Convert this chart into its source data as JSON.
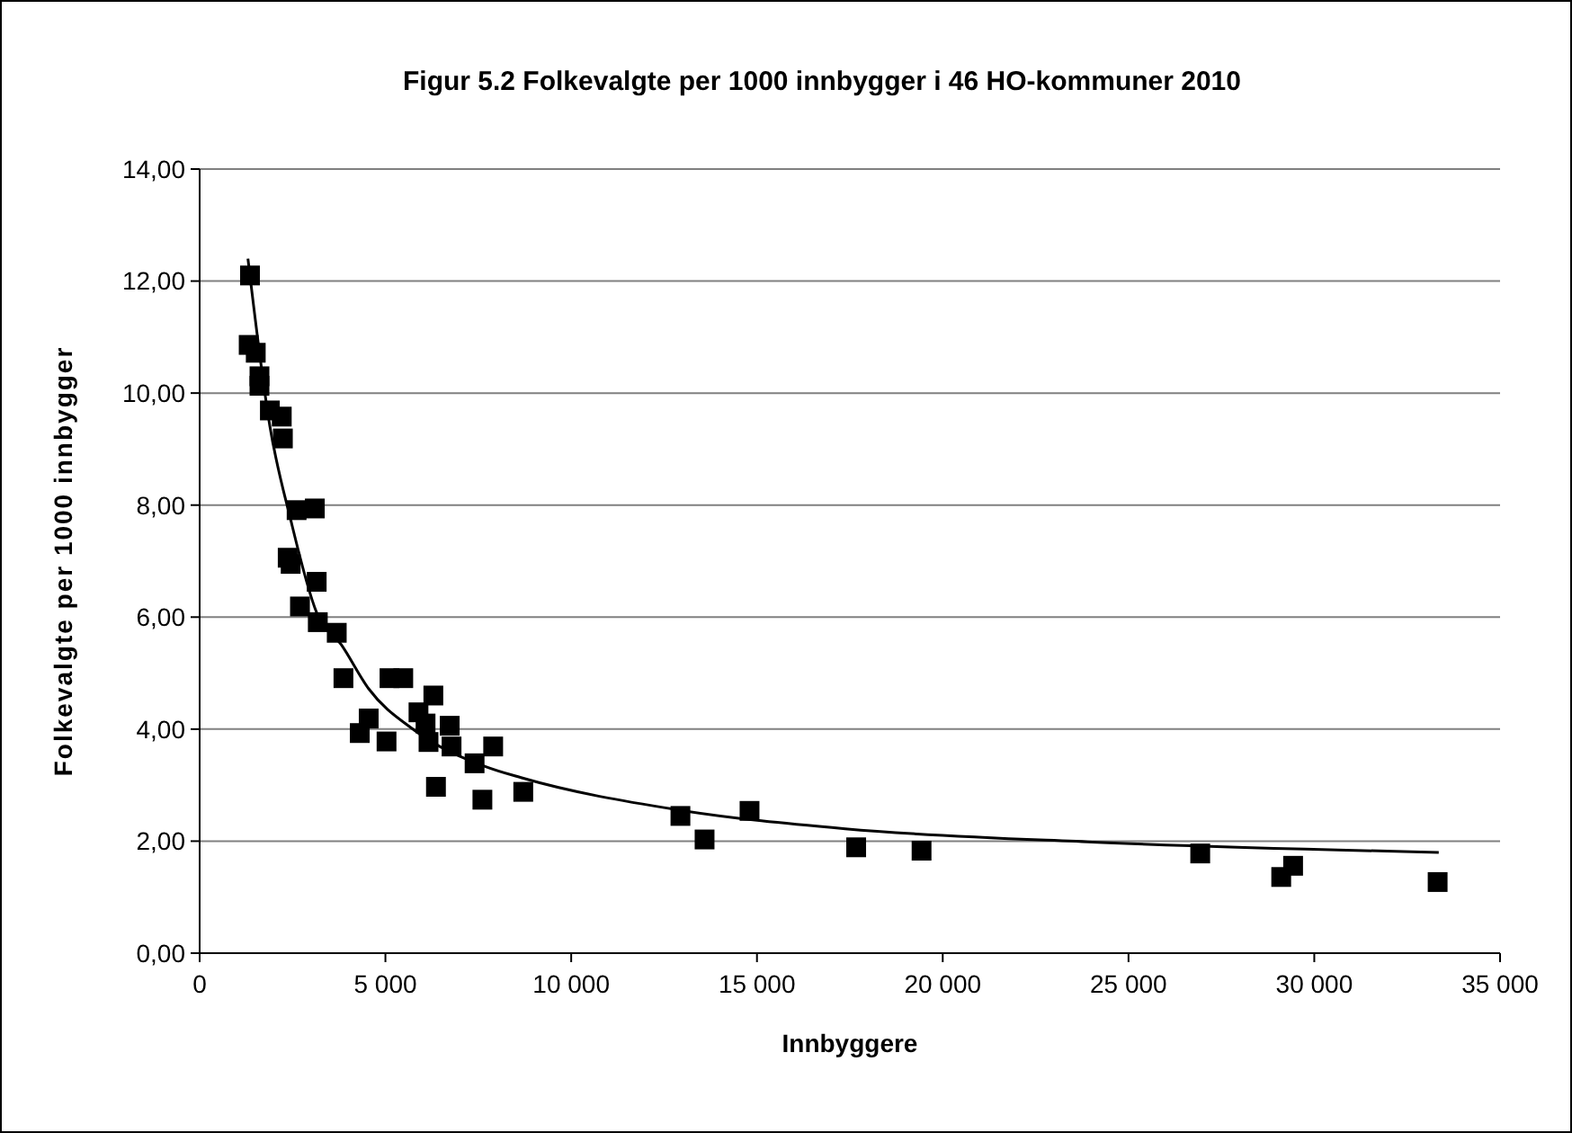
{
  "chart_data": {
    "type": "scatter",
    "title": "Figur 5.2 Folkevalgte per 1000 innbygger i 46 HO-kommuner 2010",
    "xlabel": "Innbyggere",
    "ylabel": "Folkevalgte per 1000 innbygger",
    "xlim": [
      0,
      35000
    ],
    "ylim": [
      0,
      14
    ],
    "xticks": [
      0,
      {
        "value": 5000,
        "label": "5 000"
      },
      {
        "value": 10000,
        "label": "10 000"
      },
      {
        "value": 15000,
        "label": "15 000"
      },
      {
        "value": 20000,
        "label": "20 000"
      },
      {
        "value": 25000,
        "label": "25 000"
      },
      {
        "value": 30000,
        "label": "30 000"
      },
      {
        "value": 35000,
        "label": "35 000"
      }
    ],
    "yticks": [
      {
        "value": 0,
        "label": "0,00"
      },
      {
        "value": 2,
        "label": "2,00"
      },
      {
        "value": 4,
        "label": "4,00"
      },
      {
        "value": 6,
        "label": "6,00"
      },
      {
        "value": 8,
        "label": "8,00"
      },
      {
        "value": 10,
        "label": "10,00"
      },
      {
        "value": 12,
        "label": "12,00"
      },
      {
        "value": 14,
        "label": "14,00"
      }
    ],
    "grid": "y",
    "marker": "square",
    "series": [
      {
        "color": "#000000",
        "x": [
          1355,
          1320,
          1510,
          1610,
          1610,
          1890,
          2210,
          2240,
          2610,
          3100,
          2370,
          2450,
          3150,
          2700,
          3180,
          3690,
          3870,
          5110,
          5480,
          4550,
          4310,
          5030,
          6290,
          5890,
          6080,
          6730,
          6160,
          6780,
          7400,
          7900,
          6360,
          7610,
          8710,
          12940,
          13590,
          14800,
          17670,
          19430,
          26930,
          29110,
          29430,
          33320
        ],
        "values": [
          12.1,
          10.86,
          10.72,
          10.3,
          10.13,
          9.69,
          9.58,
          9.19,
          7.91,
          7.94,
          7.06,
          6.95,
          6.63,
          6.19,
          5.91,
          5.72,
          4.91,
          4.91,
          4.91,
          4.19,
          3.93,
          3.78,
          4.6,
          4.3,
          4.1,
          4.06,
          3.77,
          3.69,
          3.39,
          3.69,
          2.97,
          2.74,
          2.88,
          2.45,
          2.03,
          2.54,
          1.89,
          1.83,
          1.78,
          1.36,
          1.56,
          1.27
        ]
      },
      {
        "type": "line",
        "color": "#000000",
        "marker": "none",
        "line_style": "solid",
        "x": [
          1300,
          1890,
          2450,
          3150,
          3820,
          4550,
          5760,
          7700,
          8670,
          12860,
          17380,
          24160,
          33350
        ],
        "values": [
          12.4,
          9.41,
          7.74,
          6.08,
          5.5,
          4.72,
          3.99,
          3.33,
          3.13,
          2.56,
          2.22,
          1.98,
          1.8
        ]
      }
    ]
  }
}
